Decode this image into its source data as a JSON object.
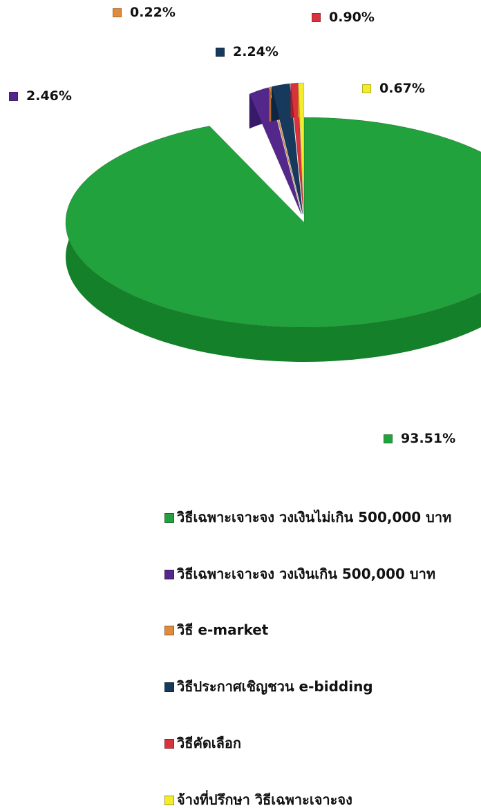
{
  "chart_data": {
    "type": "pie",
    "style": "3d-exploded",
    "slices": [
      {
        "label": "วิธีเฉพาะเจาะจง วงเงินไม่เกิน 500,000 บาท",
        "value": 93.51,
        "value_label": "93.51%",
        "color": "#22a23c",
        "side_color": "#148029"
      },
      {
        "label": "วิธีเฉพาะเจาะจง วงเงินเกิน 500,000 บาท",
        "value": 2.46,
        "value_label": "2.46%",
        "color": "#53288a",
        "side_color": "#38196a"
      },
      {
        "label": "วิธี e-market",
        "value": 0.22,
        "value_label": "0.22%",
        "color": "#e08a3c",
        "side_color": "#b86a24"
      },
      {
        "label": "วิธีประกาศเชิญชวน e-bidding",
        "value": 2.24,
        "value_label": "2.24%",
        "color": "#17395c",
        "side_color": "#0c2540"
      },
      {
        "label": "วิธีคัดเลือก",
        "value": 0.9,
        "value_label": "0.90%",
        "color": "#d9323c",
        "side_color": "#a61e28"
      },
      {
        "label": "จ้างที่ปรึกษา วิธีเฉพาะเจาะจง",
        "value": 0.67,
        "value_label": "0.67%",
        "color": "#f2ec2a",
        "side_color": "#c9c416"
      }
    ],
    "legend_position": "bottom-right"
  }
}
